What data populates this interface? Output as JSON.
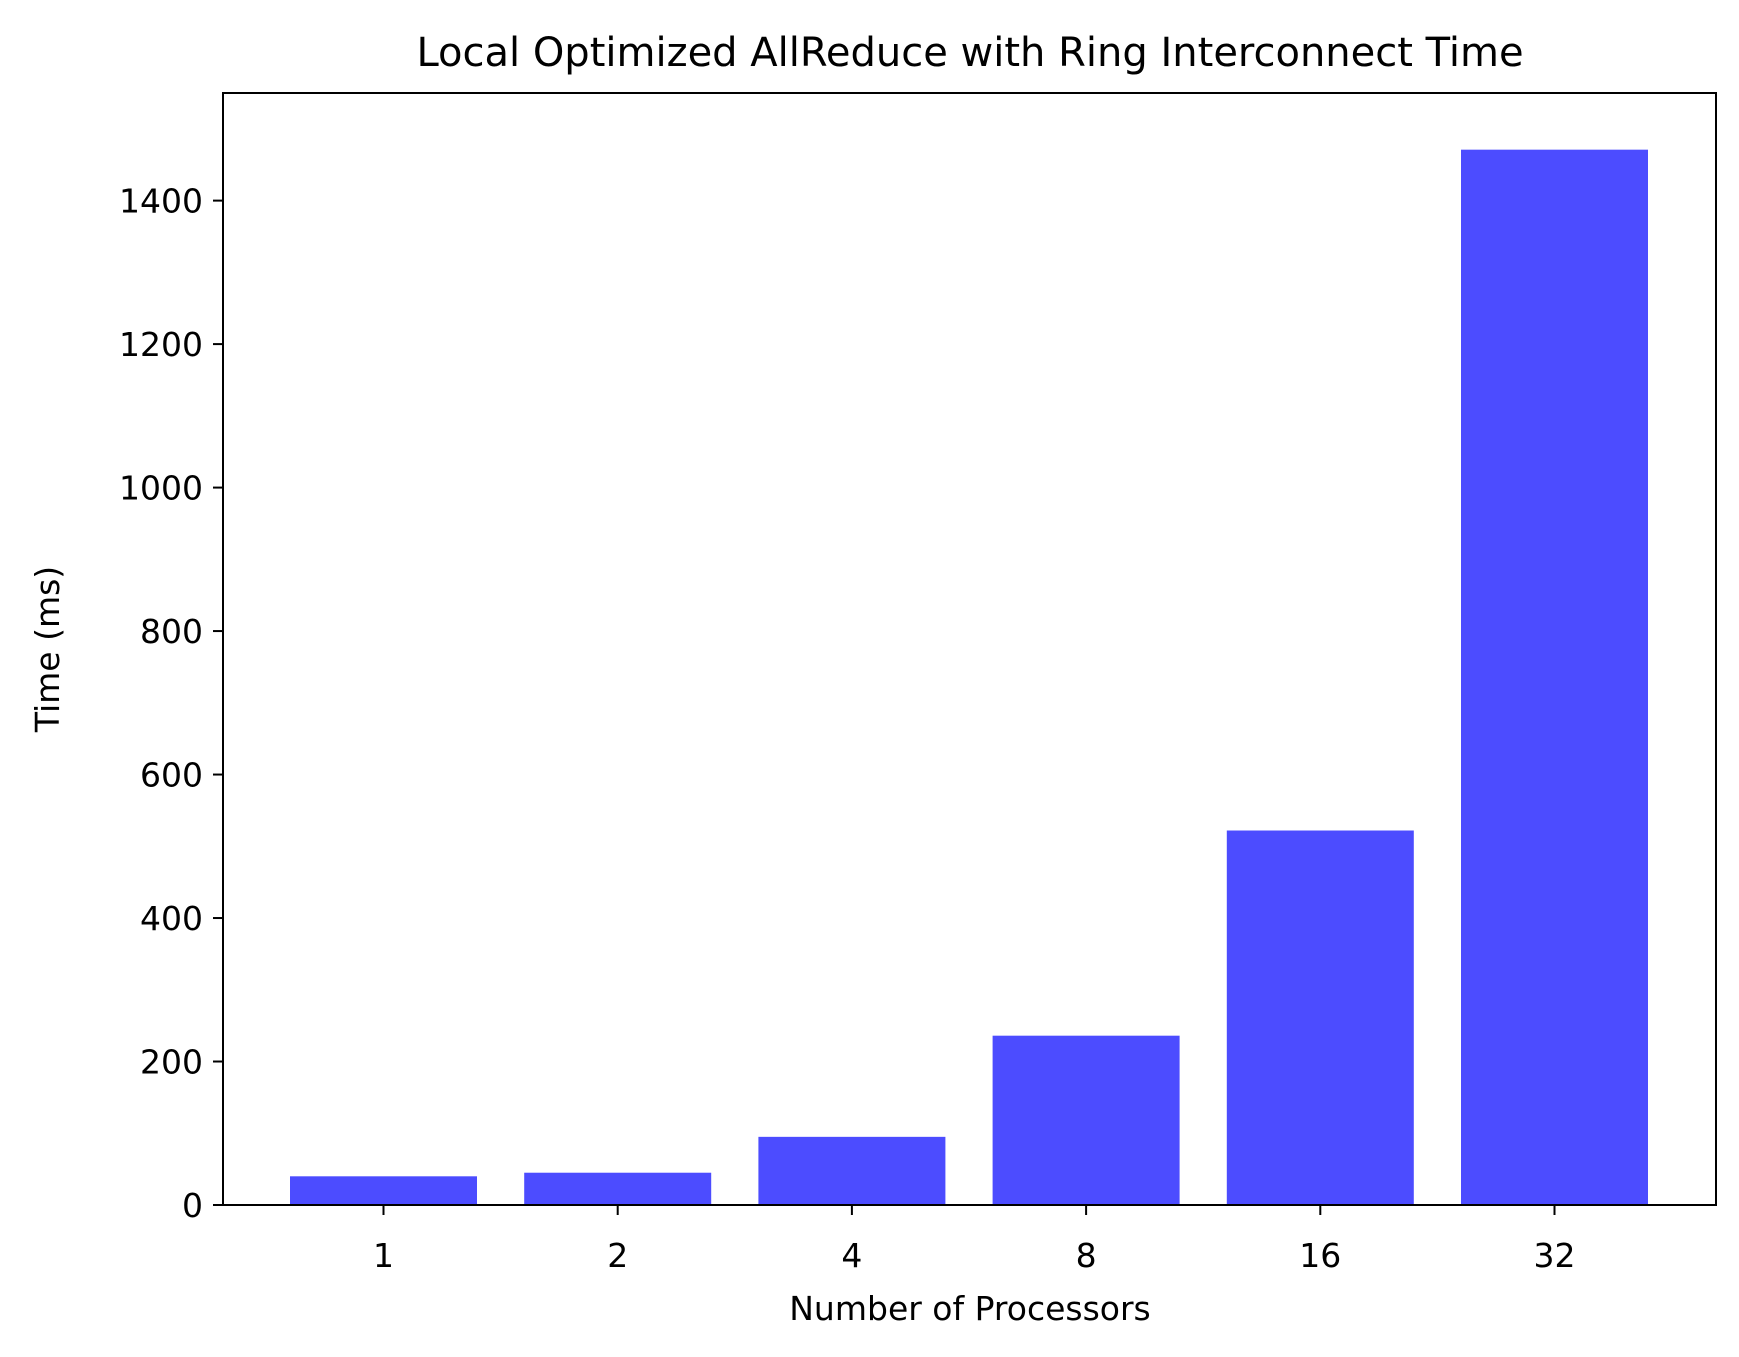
{
  "chart_data": {
    "type": "bar",
    "title": "Local Optimized AllReduce with Ring Interconnect Time",
    "xlabel": "Number of Processors",
    "ylabel": "Time (ms)",
    "categories": [
      "1",
      "2",
      "4",
      "8",
      "16",
      "32"
    ],
    "values": [
      40,
      45,
      95,
      236,
      522,
      1471
    ],
    "ylim": [
      0,
      1550
    ],
    "yticks": [
      0,
      200,
      400,
      600,
      800,
      1000,
      1200,
      1400
    ],
    "bar_color": "#4c4cff",
    "grid": false,
    "legend": "none"
  }
}
